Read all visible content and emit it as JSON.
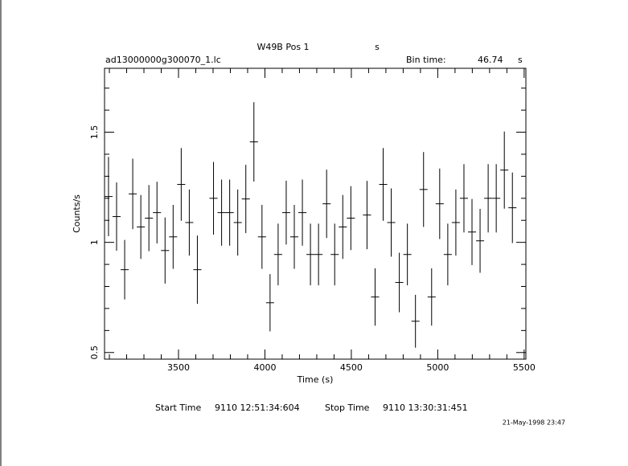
{
  "chart_data": {
    "type": "errorbar",
    "title": "W49B Pos 1",
    "title_unit": "s",
    "file_name": "ad13000000g300070_1.lc",
    "bin_time_label": "Bin time:",
    "bin_time": 46.74,
    "bin_time_unit": "s",
    "x_label": "Time (s)",
    "y_label": "Counts/s",
    "start_label": "Start Time",
    "start_time": "9110 12:51:34:604",
    "stop_label": "Stop Time",
    "stop_time": "9110 13:30:31:451",
    "date": "21-May-1998 23:47",
    "xlim": [
      3072,
      5510
    ],
    "ylim": [
      0.47,
      1.79
    ],
    "xticks": [
      3500,
      4000,
      4500,
      5000,
      5500
    ],
    "yticks": [
      0.5,
      1,
      1.5
    ],
    "xminorticks": [
      3100,
      3200,
      3300,
      3400,
      3600,
      3700,
      3800,
      3900,
      4100,
      4200,
      4300,
      4400,
      4600,
      4700,
      4800,
      4900,
      5100,
      5200,
      5300,
      5400
    ],
    "yminorticks": [
      0.6,
      0.7,
      0.8,
      0.9,
      1.1,
      1.2,
      1.3,
      1.4,
      1.6,
      1.7
    ],
    "color": "#000000",
    "x": [
      3095.0,
      3141.7,
      3188.5,
      3235.2,
      3282.0,
      3328.7,
      3375.4,
      3422.2,
      3468.9,
      3515.7,
      3562.4,
      3609.1,
      3702.6,
      3749.4,
      3796.1,
      3842.8,
      3889.6,
      3936.3,
      3983.1,
      4029.8,
      4076.5,
      4123.3,
      4170.0,
      4216.8,
      4263.5,
      4310.2,
      4357.0,
      4403.7,
      4450.5,
      4497.2,
      4590.7,
      4637.4,
      4684.2,
      4730.9,
      4777.6,
      4824.4,
      4871.1,
      4917.9,
      4964.6,
      5011.3,
      5058.1,
      5104.8,
      5151.6,
      5198.3,
      5245.0,
      5291.8,
      5338.5,
      5385.3,
      5432.0
    ],
    "values": [
      1.208,
      1.117,
      0.876,
      1.22,
      1.07,
      1.11,
      1.135,
      0.963,
      1.025,
      1.263,
      1.09,
      0.876,
      1.2,
      1.135,
      1.135,
      1.09,
      1.197,
      1.456,
      1.025,
      0.726,
      0.945,
      1.135,
      1.025,
      1.135,
      0.945,
      0.945,
      1.175,
      0.945,
      1.07,
      1.11,
      1.124,
      0.752,
      1.263,
      1.09,
      0.818,
      0.945,
      0.642,
      1.24,
      0.752,
      1.175,
      0.945,
      1.09,
      1.2,
      1.047,
      1.007,
      1.2,
      1.2,
      1.328,
      1.157
    ],
    "errors": [
      0.18,
      0.155,
      0.135,
      0.16,
      0.145,
      0.15,
      0.14,
      0.15,
      0.145,
      0.165,
      0.15,
      0.155,
      0.165,
      0.15,
      0.15,
      0.15,
      0.155,
      0.18,
      0.145,
      0.13,
      0.14,
      0.145,
      0.145,
      0.15,
      0.14,
      0.14,
      0.155,
      0.14,
      0.145,
      0.145,
      0.155,
      0.13,
      0.165,
      0.155,
      0.135,
      0.14,
      0.12,
      0.17,
      0.13,
      0.16,
      0.14,
      0.15,
      0.155,
      0.15,
      0.145,
      0.155,
      0.155,
      0.175,
      0.16
    ]
  }
}
